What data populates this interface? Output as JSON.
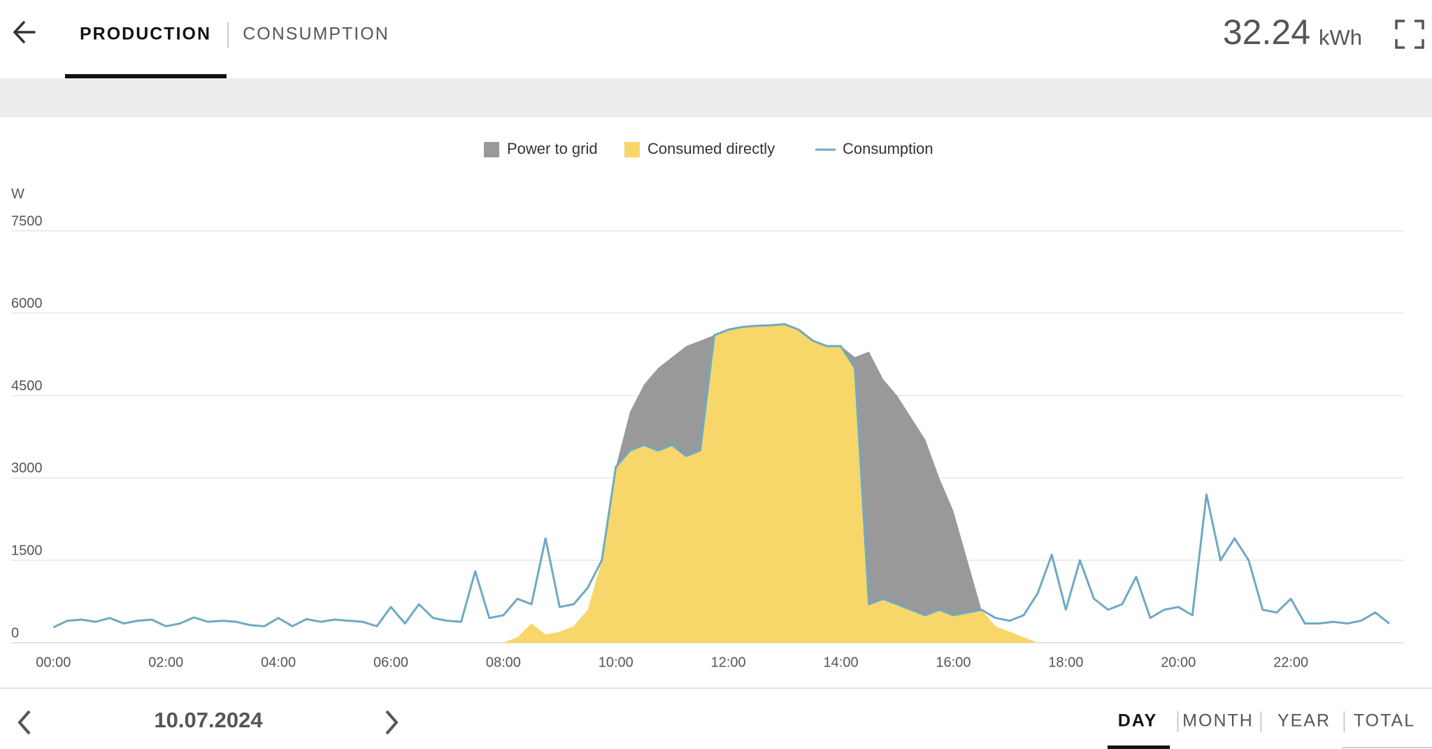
{
  "header": {
    "tabs": [
      "PRODUCTION",
      "CONSUMPTION"
    ],
    "total": {
      "value": "32.24",
      "unit": "kWh"
    }
  },
  "chart_data": {
    "type": "area",
    "y_label": "W",
    "legend": "top",
    "stacked": true,
    "grid": true,
    "xlim": [
      -0.75,
      24
    ],
    "ylim": [
      0,
      7500
    ],
    "yticks": [
      0,
      1500,
      3000,
      4500,
      6000,
      7500
    ],
    "xticks": [
      {
        "value": 0,
        "label": "00:00"
      },
      {
        "value": 2,
        "label": "02:00"
      },
      {
        "value": 4,
        "label": "04:00"
      },
      {
        "value": 6,
        "label": "06:00"
      },
      {
        "value": 8,
        "label": "08:00"
      },
      {
        "value": 10,
        "label": "10:00"
      },
      {
        "value": 12,
        "label": "12:00"
      },
      {
        "value": 14,
        "label": "14:00"
      },
      {
        "value": 16,
        "label": "16:00"
      },
      {
        "value": 18,
        "label": "18:00"
      },
      {
        "value": 20,
        "label": "20:00"
      },
      {
        "value": 22,
        "label": "22:00"
      }
    ],
    "x": [
      0,
      0.25,
      0.5,
      0.75,
      1,
      1.25,
      1.5,
      1.75,
      2,
      2.25,
      2.5,
      2.75,
      3,
      3.25,
      3.5,
      3.75,
      4,
      4.25,
      4.5,
      4.75,
      5,
      5.25,
      5.5,
      5.75,
      6,
      6.25,
      6.5,
      6.75,
      7,
      7.25,
      7.5,
      7.75,
      8,
      8.25,
      8.5,
      8.75,
      9,
      9.25,
      9.5,
      9.75,
      10,
      10.25,
      10.5,
      10.75,
      11,
      11.25,
      11.5,
      11.75,
      12,
      12.25,
      12.5,
      12.75,
      13,
      13.25,
      13.5,
      13.75,
      14,
      14.25,
      14.5,
      14.75,
      15,
      15.25,
      15.5,
      15.75,
      16,
      16.25,
      16.5,
      16.75,
      17,
      17.25,
      17.5,
      17.75,
      18,
      18.25,
      18.5,
      18.75,
      19,
      19.25,
      19.5,
      19.75,
      20,
      20.25,
      20.5,
      20.75,
      21,
      21.25,
      21.5,
      21.75,
      22,
      22.25,
      22.5,
      22.75,
      23,
      23.25,
      23.5,
      23.75
    ],
    "series": [
      {
        "name": "Power to grid",
        "color": "#999999",
        "kind": "area",
        "values": [
          null,
          null,
          null,
          null,
          null,
          null,
          null,
          null,
          null,
          null,
          null,
          null,
          null,
          null,
          null,
          null,
          null,
          null,
          null,
          null,
          null,
          null,
          null,
          null,
          null,
          null,
          null,
          null,
          null,
          null,
          null,
          null,
          0,
          0,
          0,
          0,
          0,
          0,
          0,
          0,
          0,
          700,
          1100,
          1500,
          1600,
          2000,
          2000,
          0,
          0,
          0,
          0,
          0,
          0,
          0,
          0,
          0,
          0,
          200,
          4600,
          4000,
          3800,
          3500,
          3200,
          2400,
          1900,
          950,
          0,
          0,
          0,
          0,
          0,
          null,
          null,
          null,
          null,
          null,
          null,
          null,
          null,
          null,
          null,
          null,
          null,
          null,
          null,
          null,
          null,
          null,
          null,
          null,
          null,
          null,
          null,
          null,
          null,
          null
        ]
      },
      {
        "name": "Consumed directly",
        "color": "#f7d66a",
        "kind": "area",
        "values": [
          null,
          null,
          null,
          null,
          null,
          null,
          null,
          null,
          null,
          null,
          null,
          null,
          null,
          null,
          null,
          null,
          null,
          null,
          null,
          null,
          null,
          null,
          null,
          null,
          null,
          null,
          null,
          null,
          null,
          null,
          null,
          null,
          0,
          100,
          350,
          150,
          200,
          300,
          600,
          1500,
          3200,
          3500,
          3600,
          3500,
          3600,
          3400,
          3500,
          5600,
          5700,
          5750,
          5770,
          5780,
          5800,
          5700,
          5500,
          5400,
          5400,
          5000,
          700,
          800,
          700,
          600,
          500,
          600,
          500,
          550,
          600,
          300,
          200,
          100,
          0,
          null,
          null,
          null,
          null,
          null,
          null,
          null,
          null,
          null,
          null,
          null,
          null,
          null,
          null,
          null,
          null,
          null,
          null,
          null,
          null,
          null,
          null,
          null,
          null,
          null
        ]
      },
      {
        "name": "Consumption",
        "color": "#6fa9c4",
        "kind": "line",
        "values": [
          280,
          400,
          420,
          380,
          450,
          350,
          400,
          420,
          300,
          350,
          460,
          380,
          400,
          380,
          320,
          300,
          450,
          300,
          430,
          380,
          420,
          400,
          380,
          300,
          650,
          350,
          700,
          450,
          400,
          380,
          1300,
          450,
          500,
          800,
          700,
          1900,
          650,
          700,
          1000,
          1500,
          3200,
          3500,
          3600,
          3500,
          3600,
          3400,
          3500,
          5600,
          5700,
          5750,
          5770,
          5780,
          5800,
          5700,
          5500,
          5400,
          5400,
          5000,
          700,
          800,
          700,
          600,
          500,
          600,
          500,
          550,
          600,
          450,
          400,
          500,
          900,
          1600,
          600,
          1500,
          800,
          600,
          700,
          1200,
          450,
          600,
          650,
          500,
          2700,
          1500,
          1900,
          1500,
          600,
          550,
          800,
          350,
          350,
          380,
          350,
          400,
          550,
          350
        ]
      }
    ]
  },
  "footer": {
    "date": "10.07.2024",
    "periods": [
      "DAY",
      "MONTH",
      "YEAR",
      "TOTAL"
    ]
  }
}
